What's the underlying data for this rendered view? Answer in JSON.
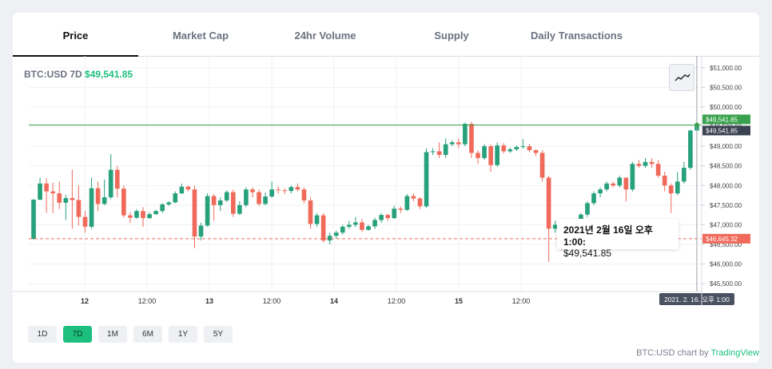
{
  "tabs": [
    {
      "label": "Price",
      "active": true
    },
    {
      "label": "Market Cap",
      "active": false
    },
    {
      "label": "24hr Volume",
      "active": false
    },
    {
      "label": "Supply",
      "active": false
    },
    {
      "label": "Daily Transactions",
      "active": false
    }
  ],
  "chart_title": {
    "symbol": "BTC:USD 7D",
    "price": "$49,541.85"
  },
  "indicator_icon": "trend-line-icon",
  "tooltip": {
    "date": "2021년 2월 16일 오후 1:00:",
    "value": "$49,541.85"
  },
  "crosshair_label": "2021. 2. 16. 오후 1:00",
  "range_buttons": [
    {
      "label": "1D",
      "active": false
    },
    {
      "label": "7D",
      "active": true
    },
    {
      "label": "1M",
      "active": false
    },
    {
      "label": "6M",
      "active": false
    },
    {
      "label": "1Y",
      "active": false
    },
    {
      "label": "5Y",
      "active": false
    }
  ],
  "credit": {
    "prefix": "BTC:USD chart by",
    "brand": "TradingView"
  },
  "colors": {
    "up": "#26a17b",
    "down": "#ef6a5a",
    "accent": "#1cbf7e"
  },
  "chart_data": {
    "type": "candlestick",
    "title": "BTC:USD 7D",
    "x_tick_labels": [
      "12",
      "12:00",
      "13",
      "12:00",
      "14",
      "12:00",
      "15",
      "12:00"
    ],
    "y_tick_labels": [
      "$51,000.00",
      "$50,500.00",
      "$50,000.00",
      "$49,500.00",
      "$49,000.00",
      "$48,500.00",
      "$48,000.00",
      "$47,500.00",
      "$47,000.00",
      "$46,500.00",
      "$46,000.00",
      "$45,500.00"
    ],
    "ylim": [
      45300,
      51300
    ],
    "price_labels": [
      {
        "text": "$49,541.85",
        "value": 49541.85,
        "color": "#3aa24e"
      },
      {
        "text": "$49,541.85",
        "value": 49541.85,
        "color": "#3b4251"
      },
      {
        "text": "$46,645.32",
        "value": 46645.32,
        "color": "#ef6a5a"
      }
    ],
    "last_price": 49541.85,
    "reference_price": 46645.32,
    "candles": [
      [
        46640,
        47640,
        46620,
        47650
      ],
      [
        47640,
        48050,
        47620,
        48200
      ],
      [
        48050,
        47850,
        47300,
        48180
      ],
      [
        47850,
        47800,
        47300,
        48080
      ],
      [
        47800,
        47560,
        47400,
        48100
      ],
      [
        47560,
        47680,
        47120,
        47760
      ],
      [
        47680,
        47630,
        46900,
        48400
      ],
      [
        47630,
        47200,
        46980,
        48000
      ],
      [
        47200,
        46950,
        46800,
        47350
      ],
      [
        46950,
        47930,
        46900,
        48200
      ],
      [
        47930,
        47530,
        47350,
        48100
      ],
      [
        47530,
        47700,
        47500,
        48150
      ],
      [
        47700,
        48400,
        47650,
        48800
      ],
      [
        48400,
        47920,
        47700,
        48500
      ],
      [
        47920,
        47240,
        47180,
        48000
      ],
      [
        47240,
        47180,
        47050,
        47320
      ],
      [
        47180,
        47350,
        47150,
        47400
      ],
      [
        47350,
        47170,
        46950,
        47450
      ],
      [
        47170,
        47270,
        47150,
        47320
      ],
      [
        47270,
        47350,
        47250,
        47380
      ],
      [
        47350,
        47520,
        47300,
        47550
      ],
      [
        47520,
        47570,
        47480,
        47600
      ],
      [
        47570,
        47800,
        47550,
        47850
      ],
      [
        47800,
        47970,
        47780,
        48050
      ],
      [
        47970,
        47900,
        47850,
        48000
      ],
      [
        47900,
        46700,
        46400,
        48000
      ],
      [
        46700,
        46980,
        46600,
        47050
      ],
      [
        46980,
        47730,
        46950,
        47800
      ],
      [
        47730,
        47500,
        47100,
        47780
      ],
      [
        47500,
        47620,
        47350,
        47700
      ],
      [
        47620,
        47830,
        47580,
        47880
      ],
      [
        47830,
        47280,
        47200,
        47900
      ],
      [
        47280,
        47500,
        47250,
        47600
      ],
      [
        47500,
        47900,
        47450,
        47950
      ],
      [
        47900,
        47830,
        47700,
        47950
      ],
      [
        47830,
        47530,
        47480,
        47900
      ],
      [
        47530,
        47720,
        47500,
        47820
      ],
      [
        47720,
        47900,
        47690,
        48100
      ],
      [
        47900,
        47880,
        47800,
        47980
      ],
      [
        47880,
        47860,
        47780,
        47920
      ],
      [
        47860,
        47960,
        47800,
        48000
      ],
      [
        47960,
        47900,
        47850,
        48050
      ],
      [
        47900,
        47620,
        47550,
        47950
      ],
      [
        47620,
        47020,
        46900,
        47700
      ],
      [
        47020,
        47240,
        46950,
        47300
      ],
      [
        47240,
        46600,
        46550,
        47300
      ],
      [
        46600,
        46720,
        46500,
        46800
      ],
      [
        46720,
        46800,
        46650,
        46850
      ],
      [
        46800,
        46950,
        46750,
        47000
      ],
      [
        46950,
        47000,
        46900,
        47100
      ],
      [
        47000,
        47060,
        46940,
        47200
      ],
      [
        47060,
        46870,
        46820,
        47150
      ],
      [
        46870,
        46960,
        46850,
        47000
      ],
      [
        46960,
        47120,
        46900,
        47180
      ],
      [
        47120,
        47250,
        47050,
        47300
      ],
      [
        47250,
        47170,
        47100,
        47280
      ],
      [
        47170,
        47410,
        47150,
        47480
      ],
      [
        47410,
        47380,
        47300,
        47460
      ],
      [
        47380,
        47730,
        47350,
        47780
      ],
      [
        47730,
        47670,
        47600,
        47800
      ],
      [
        47670,
        47470,
        47400,
        47700
      ],
      [
        47470,
        48850,
        47430,
        48950
      ],
      [
        48850,
        48870,
        48780,
        48950
      ],
      [
        48870,
        48780,
        48700,
        49100
      ],
      [
        48780,
        49050,
        48700,
        49200
      ],
      [
        49050,
        49100,
        49000,
        49150
      ],
      [
        49100,
        49050,
        48950,
        49200
      ],
      [
        49050,
        49570,
        49000,
        49600
      ],
      [
        49570,
        48830,
        48700,
        49620
      ],
      [
        48830,
        48700,
        48550,
        48900
      ],
      [
        48700,
        49000,
        48650,
        49050
      ],
      [
        49000,
        48520,
        48350,
        49050
      ],
      [
        48520,
        49020,
        48480,
        49100
      ],
      [
        49020,
        48870,
        48820,
        49080
      ],
      [
        48870,
        48920,
        48830,
        48960
      ],
      [
        48920,
        48980,
        48880,
        49020
      ],
      [
        48980,
        49000,
        48940,
        49180
      ],
      [
        49000,
        48900,
        48850,
        49060
      ],
      [
        48900,
        48830,
        48750,
        48920
      ],
      [
        48830,
        48200,
        48100,
        48900
      ],
      [
        48200,
        46900,
        46050,
        48250
      ],
      [
        46900,
        47000,
        46800,
        47100
      ],
      [
        47000,
        46780,
        46350,
        47080
      ],
      [
        46780,
        47000,
        46700,
        47050
      ],
      [
        47000,
        46890,
        46800,
        47020
      ],
      [
        46890,
        47260,
        46850,
        47300
      ],
      [
        47260,
        47550,
        47200,
        47600
      ],
      [
        47550,
        47800,
        47500,
        47850
      ],
      [
        47800,
        47900,
        47700,
        47950
      ],
      [
        47900,
        48050,
        47850,
        48100
      ],
      [
        48050,
        48000,
        47950,
        48100
      ],
      [
        48000,
        48200,
        47950,
        48250
      ],
      [
        48200,
        47900,
        47600,
        48200
      ],
      [
        47900,
        48550,
        47850,
        48600
      ],
      [
        48550,
        48500,
        48450,
        48650
      ],
      [
        48500,
        48600,
        48450,
        48700
      ],
      [
        48600,
        48550,
        48450,
        48700
      ],
      [
        48550,
        48250,
        48200,
        48650
      ],
      [
        48250,
        48000,
        47850,
        48350
      ],
      [
        48000,
        47800,
        47300,
        48050
      ],
      [
        47800,
        48100,
        47750,
        48350
      ],
      [
        48100,
        48450,
        48050,
        48600
      ],
      [
        48450,
        49400,
        48400,
        49420
      ],
      [
        49400,
        49541.85,
        49380,
        49600
      ]
    ]
  }
}
